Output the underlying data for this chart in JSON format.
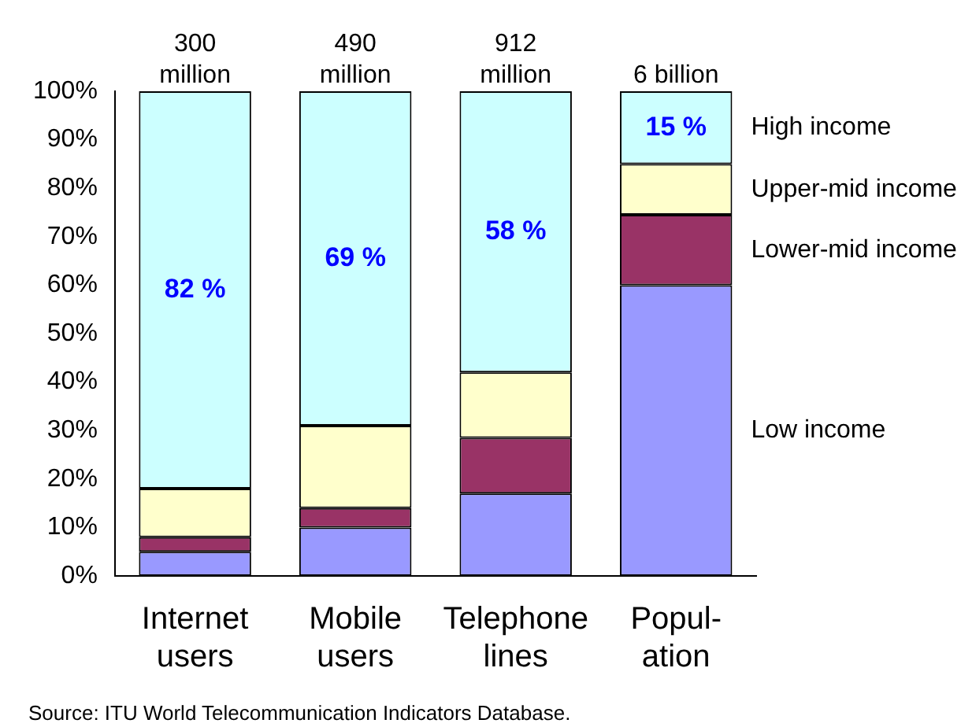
{
  "chart_data": {
    "type": "bar",
    "stacked": true,
    "categories": [
      "Internet\nusers",
      "Mobile\nusers",
      "Telephone\nlines",
      "Popul-\nation"
    ],
    "series": [
      {
        "name": "Low income",
        "color": "#9999ff",
        "values": [
          5,
          10,
          17,
          60
        ]
      },
      {
        "name": "Lower-mid income",
        "color": "#993366",
        "values": [
          3,
          4,
          11.5,
          14.5
        ]
      },
      {
        "name": "Upper-mid income",
        "color": "#ffffcc",
        "values": [
          10,
          17,
          13.5,
          10.5
        ]
      },
      {
        "name": "High income",
        "color": "#ccffff",
        "values": [
          82,
          69,
          58,
          15
        ],
        "value_labels": [
          "82 %",
          "69 %",
          "58 %",
          "15 %"
        ]
      }
    ],
    "ylim": [
      0,
      100
    ],
    "yticks": [
      {
        "value": 0,
        "label": "0%"
      },
      {
        "value": 10,
        "label": "10%"
      },
      {
        "value": 20,
        "label": "20%"
      },
      {
        "value": 30,
        "label": "30%"
      },
      {
        "value": 40,
        "label": "40%"
      },
      {
        "value": 50,
        "label": "50%"
      },
      {
        "value": 60,
        "label": "60%"
      },
      {
        "value": 70,
        "label": "70%"
      },
      {
        "value": 80,
        "label": "80%"
      },
      {
        "value": 90,
        "label": "90%"
      },
      {
        "value": 100,
        "label": "100%"
      }
    ],
    "grid": false,
    "legend": false,
    "annotations": [
      {
        "text": "300\nmillion",
        "x": "Internet\nusers",
        "y": 100
      },
      {
        "text": "490\nmillion",
        "x": "Mobile\nusers",
        "y": 100
      },
      {
        "text": "912\nmillion",
        "x": "Telephone\nlines",
        "y": 100
      },
      {
        "text": "6 billion",
        "x": "Popul-\nation",
        "y": 100
      },
      "Source: ITU World Telecommunication Indicators Database."
    ]
  }
}
